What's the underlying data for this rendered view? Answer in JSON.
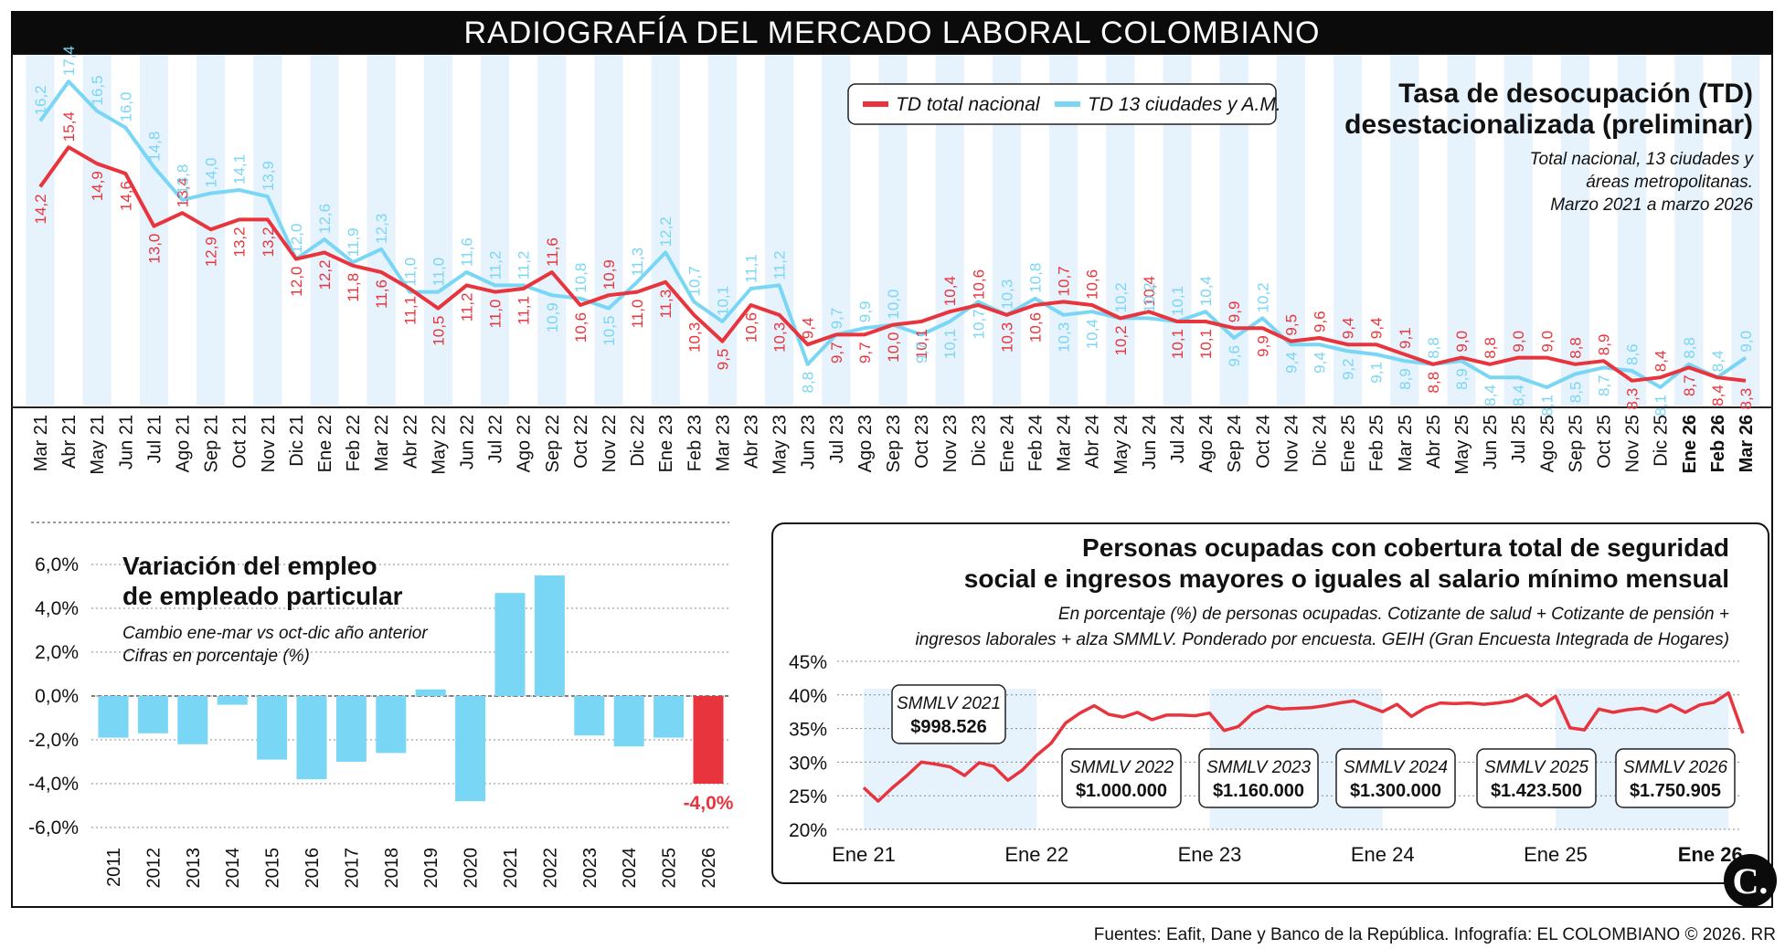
{
  "header": {
    "title": "RADIOGRAFÍA DEL MERCADO LABORAL COLOMBIANO"
  },
  "footer": {
    "source": "Fuentes: Eafit, Dane y Banco de la República. Infografía: EL COLOMBIANO © 2026. RR",
    "logo_text": "C."
  },
  "colors": {
    "red": "#e8343c",
    "blue": "#79d6f5",
    "band": "#e6f2fc",
    "title_bg": "#0b0b0b"
  },
  "chart_data": [
    {
      "type": "line",
      "title": "Tasa de desocupación (TD)\ndesestacionalizada (preliminar)",
      "subtitle": "Total nacional, 13 ciudades y\náreas metropolitanas.\nMarzo 2021 a marzo 2026",
      "legend_position": "top-center",
      "categories": [
        "Mar 21",
        "Abr 21",
        "May 21",
        "Jun 21",
        "Jul 21",
        "Ago 21",
        "Sep 21",
        "Oct 21",
        "Nov 21",
        "Dic 21",
        "Ene 22",
        "Feb 22",
        "Mar 22",
        "Abr 22",
        "May 22",
        "Jun 22",
        "Jul 22",
        "Ago 22",
        "Sep 22",
        "Oct 22",
        "Nov 22",
        "Dic 22",
        "Ene 23",
        "Feb 23",
        "Mar 23",
        "Abr 23",
        "May 23",
        "Jun 23",
        "Jul 23",
        "Ago 23",
        "Sep 23",
        "Oct 23",
        "Nov 23",
        "Dic 23",
        "Ene 24",
        "Feb 24",
        "Mar 24",
        "Abr 24",
        "May 24",
        "Jun 24",
        "Jul 24",
        "Ago 24",
        "Sep 24",
        "Oct 24",
        "Nov 24",
        "Dic 24",
        "Ene 25",
        "Feb 25",
        "Mar 25",
        "Abr 25",
        "May 25",
        "Jun 25",
        "Jul 25",
        "Ago 25",
        "Sep 25",
        "Oct 25",
        "Nov 25",
        "Dic 25",
        "Ene 26",
        "Feb 26",
        "Mar 26"
      ],
      "bold_categories": [
        "Ene 26",
        "Feb 26",
        "Mar 26"
      ],
      "series": [
        {
          "name": "TD total nacional",
          "color": "#e8343c",
          "values": [
            14.2,
            15.4,
            14.9,
            14.6,
            13.0,
            13.4,
            12.9,
            13.2,
            13.2,
            12.0,
            12.2,
            11.8,
            11.6,
            11.1,
            10.5,
            11.2,
            11.0,
            11.1,
            11.6,
            10.6,
            10.9,
            11.0,
            11.3,
            10.3,
            9.5,
            10.6,
            10.3,
            9.4,
            9.7,
            9.7,
            10.0,
            10.1,
            10.4,
            10.6,
            10.3,
            10.6,
            10.7,
            10.6,
            10.2,
            10.4,
            10.1,
            10.1,
            9.9,
            9.9,
            9.5,
            9.6,
            9.4,
            9.4,
            9.1,
            8.8,
            9.0,
            8.8,
            9.0,
            9.0,
            8.8,
            8.9,
            8.3,
            8.4,
            8.7,
            8.4,
            8.3
          ],
          "labels": [
            "14,2",
            "15,4",
            "14,9",
            "14,6",
            "13,0",
            "13,4",
            "12,9",
            "13,2",
            "13,2",
            "12,0",
            "12,2",
            "11,8",
            "11,6",
            "11,1",
            "10,5",
            "11,2",
            "11,0",
            "11,1",
            "11,6",
            "10,6",
            "10,9",
            "11,0",
            "11,3",
            "10,3",
            "9,5",
            "10,6",
            "10,3",
            "9,4",
            "9,7",
            "9,7",
            "10,0",
            "10,1",
            "10,4",
            "10,6",
            "10,3",
            "10,6",
            "10,7",
            "10,6",
            "10,2",
            "10,4",
            "10,1",
            "10,1",
            "9,9",
            "9,9",
            "9,5",
            "9,6",
            "9,4",
            "9,4",
            "9,1",
            "8,8",
            "9,0",
            "8,8",
            "9,0",
            "9,0",
            "8,8",
            "8,9",
            "8,3",
            "8,4",
            "8,7",
            "8,4",
            "8,3"
          ],
          "label_above": [
            false,
            true,
            false,
            false,
            false,
            true,
            false,
            false,
            false,
            false,
            false,
            false,
            false,
            false,
            false,
            false,
            false,
            false,
            true,
            false,
            true,
            false,
            false,
            false,
            false,
            false,
            false,
            true,
            false,
            false,
            false,
            false,
            true,
            true,
            false,
            false,
            true,
            true,
            false,
            true,
            false,
            false,
            true,
            false,
            true,
            true,
            true,
            true,
            true,
            false,
            true,
            true,
            true,
            true,
            true,
            true,
            false,
            true,
            false,
            false,
            false
          ]
        },
        {
          "name": "TD 13 ciudades y A.M.",
          "color": "#79d6f5",
          "values": [
            16.2,
            17.4,
            16.5,
            16.0,
            14.8,
            13.8,
            14.0,
            14.1,
            13.9,
            12.0,
            12.6,
            11.9,
            12.3,
            11.0,
            11.0,
            11.6,
            11.2,
            11.2,
            10.9,
            10.8,
            10.5,
            11.3,
            12.2,
            10.7,
            10.1,
            11.1,
            11.2,
            8.8,
            9.7,
            9.9,
            10.0,
            9.7,
            10.1,
            10.7,
            10.3,
            10.8,
            10.3,
            10.4,
            10.2,
            10.2,
            10.1,
            10.4,
            9.6,
            10.2,
            9.4,
            9.4,
            9.2,
            9.1,
            8.9,
            8.8,
            8.9,
            8.4,
            8.4,
            8.1,
            8.5,
            8.7,
            8.6,
            8.1,
            8.8,
            8.4,
            9.0
          ],
          "labels": [
            "16,2",
            "17,4",
            "16,5",
            "16,0",
            "14,8",
            "13,8",
            "14,0",
            "14,1",
            "13,9",
            "12,0",
            "12,6",
            "11,9",
            "12,3",
            "11,0",
            "11,0",
            "11,6",
            "11,2",
            "11,2",
            "10,9",
            "10,8",
            "10,5",
            "11,3",
            "12,2",
            "10,7",
            "10,1",
            "11,1",
            "11,2",
            "8,8",
            "9,7",
            "9,9",
            "10,0",
            "9,7",
            "10,1",
            "10,7",
            "10,3",
            "10,8",
            "10,3",
            "10,4",
            "10,2",
            "10,2",
            "10,1",
            "10,4",
            "9,6",
            "10,2",
            "9,4",
            "9,4",
            "9,2",
            "9,1",
            "8,9",
            "8,8",
            "8,9",
            "8,4",
            "8,4",
            "8,1",
            "8,5",
            "8,7",
            "8,6",
            "8,1",
            "8,8",
            "8,4",
            "9,0"
          ],
          "label_above": [
            true,
            true,
            true,
            true,
            true,
            true,
            true,
            true,
            true,
            true,
            true,
            true,
            true,
            true,
            true,
            true,
            true,
            true,
            false,
            true,
            false,
            true,
            true,
            true,
            true,
            true,
            true,
            false,
            true,
            true,
            true,
            false,
            false,
            false,
            true,
            true,
            false,
            false,
            true,
            true,
            true,
            true,
            false,
            true,
            false,
            false,
            false,
            false,
            false,
            true,
            false,
            false,
            false,
            false,
            false,
            false,
            true,
            false,
            true,
            true,
            true
          ]
        }
      ],
      "ylim": [
        7.6,
        17.6
      ]
    },
    {
      "type": "bar",
      "title": "Variación del empleo\nde empleado particular",
      "subtitle": "Cambio ene-mar vs oct-dic año anterior\nCifras en porcentaje (%)",
      "categories": [
        "2011",
        "2012",
        "2013",
        "2014",
        "2015",
        "2016",
        "2017",
        "2018",
        "2019",
        "2020",
        "2021",
        "2022",
        "2023",
        "2024",
        "2025",
        "2026"
      ],
      "values": [
        -1.9,
        -1.7,
        -2.2,
        -0.4,
        -2.9,
        -3.8,
        -3.0,
        -2.6,
        0.3,
        -4.8,
        4.7,
        5.5,
        -1.8,
        -2.3,
        -1.9,
        -4.0
      ],
      "highlight_label": "-4,0%",
      "highlight_color": "#e8343c",
      "ylim": [
        -6,
        6
      ],
      "yticks": [
        "6,0%",
        "4,0%",
        "2,0%",
        "0,0%",
        "-2,0%",
        "-4,0%",
        "-6,0%"
      ]
    },
    {
      "type": "line",
      "title": "Personas ocupadas con cobertura total de seguridad\nsocial e ingresos mayores o iguales al salario mínimo mensual",
      "subtitle": "En porcentaje (%) de personas ocupadas. Cotizante de salud + Cotizante de pensión +\ningresos laborales + alza SMMLV. Ponderado por encuesta. GEIH (Gran Encuesta Integrada de Hogares)",
      "ylim": [
        20,
        45
      ],
      "yticks": [
        "45%",
        "40%",
        "35%",
        "30%",
        "25%",
        "20%"
      ],
      "xticks": [
        "Ene 21",
        "Ene 22",
        "Ene 23",
        "Ene 24",
        "Ene 25",
        "Ene 26"
      ],
      "series": [
        {
          "name": "",
          "color": "#e8343c",
          "values": [
            26.2,
            24.2,
            26.2,
            28.0,
            30.0,
            29.7,
            29.3,
            28.0,
            29.9,
            29.4,
            27.3,
            28.8,
            31.0,
            32.8,
            35.8,
            37.3,
            38.4,
            37.1,
            36.7,
            37.4,
            36.3,
            37.0,
            37.0,
            36.9,
            37.3,
            34.7,
            35.3,
            37.3,
            38.3,
            37.9,
            38.0,
            38.1,
            38.4,
            38.8,
            39.1,
            38.3,
            37.5,
            38.6,
            36.8,
            38.1,
            38.8,
            38.7,
            38.8,
            38.6,
            38.8,
            39.1,
            40.0,
            38.4,
            39.8,
            35.1,
            34.8,
            37.9,
            37.4,
            37.8,
            38.0,
            37.5,
            38.5,
            37.4,
            38.5,
            38.9,
            40.3,
            34.3
          ]
        }
      ],
      "annotations": [
        {
          "label": "SMMLV 2021",
          "value": "$998.526"
        },
        {
          "label": "SMMLV 2022",
          "value": "$1.000.000"
        },
        {
          "label": "SMMLV 2023",
          "value": "$1.160.000"
        },
        {
          "label": "SMMLV 2024",
          "value": "$1.300.000"
        },
        {
          "label": "SMMLV 2025",
          "value": "$1.423.500"
        },
        {
          "label": "SMMLV 2026",
          "value": "$1.750.905"
        }
      ]
    }
  ]
}
